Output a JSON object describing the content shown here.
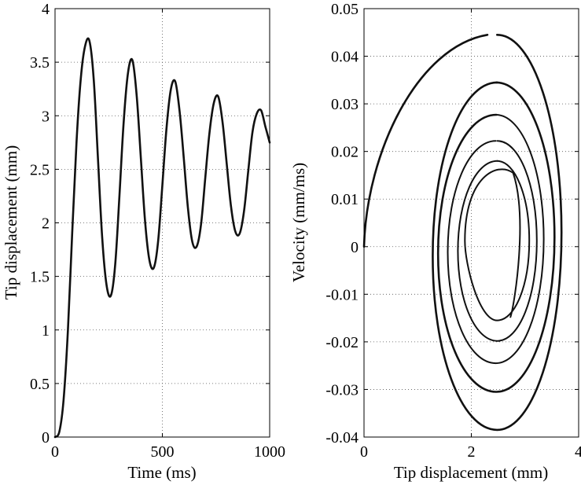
{
  "chart_data": [
    {
      "type": "line",
      "title": "",
      "xlabel": "Time (ms)",
      "ylabel": "Tip displacement (mm)",
      "xlim": [
        0,
        1000
      ],
      "ylim": [
        0,
        4
      ],
      "xticks": [
        "0",
        "500",
        "1000"
      ],
      "yticks": [
        "0",
        "0.5",
        "1",
        "1.5",
        "2",
        "2.5",
        "3",
        "3.5",
        "4"
      ],
      "grid": true,
      "series": [
        {
          "x": [
            0,
            20,
            40,
            60,
            80,
            100,
            120,
            140,
            160,
            180,
            200,
            220,
            240,
            260,
            280,
            300,
            320,
            340,
            360,
            380,
            400,
            420,
            440,
            460,
            480,
            500,
            520,
            540,
            560,
            580,
            600,
            620,
            640,
            660,
            680,
            700,
            720,
            740,
            760,
            780,
            800,
            820,
            840,
            860,
            880,
            900,
            920,
            940,
            960,
            980,
            1000
          ],
          "y": [
            0,
            0.05,
            0.35,
            1.0,
            1.9,
            2.75,
            3.35,
            3.65,
            3.7,
            3.35,
            2.6,
            1.85,
            1.42,
            1.32,
            1.6,
            2.25,
            2.95,
            3.4,
            3.52,
            3.2,
            2.6,
            2.0,
            1.65,
            1.58,
            1.82,
            2.35,
            2.9,
            3.25,
            3.32,
            3.05,
            2.6,
            2.12,
            1.82,
            1.78,
            1.98,
            2.42,
            2.85,
            3.12,
            3.18,
            2.95,
            2.55,
            2.15,
            1.92,
            1.9,
            2.1,
            2.48,
            2.85,
            3.02,
            3.05,
            2.9,
            2.75
          ]
        }
      ]
    },
    {
      "type": "line",
      "title": "",
      "xlabel": "Tip displacement (mm)",
      "ylabel": "Velocity (mm/ms)",
      "xlim": [
        0,
        4
      ],
      "ylim": [
        -0.04,
        0.05
      ],
      "xticks": [
        "0",
        "2",
        "4"
      ],
      "yticks": [
        "-0.04",
        "-0.03",
        "-0.02",
        "-0.01",
        "0",
        "0.01",
        "0.02",
        "0.03",
        "0.04",
        "0.05"
      ],
      "grid": true,
      "trajectory": {
        "start": [
          0,
          0
        ],
        "first_peak": [
          2.3,
          0.0445
        ],
        "loops": [
          {
            "x_min": 1.28,
            "x_max": 3.68,
            "v_min": -0.0385,
            "v_max": 0.0445
          },
          {
            "x_min": 1.38,
            "x_max": 3.55,
            "v_min": -0.0305,
            "v_max": 0.0345
          },
          {
            "x_min": 1.56,
            "x_max": 3.35,
            "v_min": -0.0245,
            "v_max": 0.0277
          },
          {
            "x_min": 1.75,
            "x_max": 3.22,
            "v_min": -0.0198,
            "v_max": 0.0222
          },
          {
            "x_min": 1.88,
            "x_max": 3.08,
            "v_min": -0.0155,
            "v_max": 0.018
          }
        ],
        "end": [
          2.73,
          -0.0148
        ]
      }
    }
  ]
}
